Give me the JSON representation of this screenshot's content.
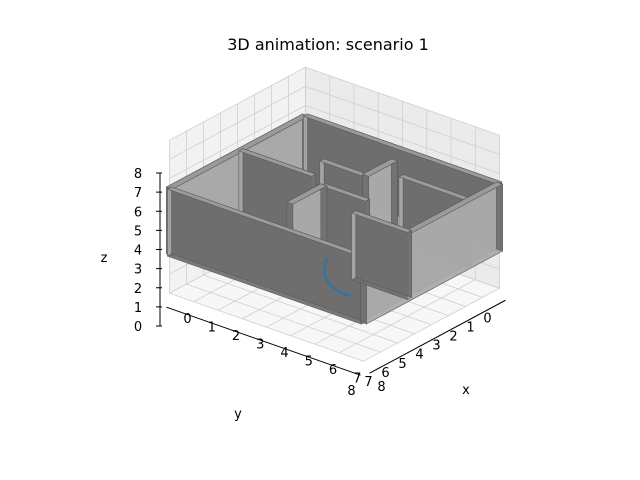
{
  "chart_data": {
    "type": "3d-wall-plot",
    "title": "3D animation: scenario 1",
    "xlabel": "x",
    "ylabel": "y",
    "zlabel": "z",
    "xlim": [
      0,
      8
    ],
    "ylim": [
      0,
      8
    ],
    "zlim": [
      0,
      8
    ],
    "x_ticks": [
      "0",
      "1",
      "2",
      "3",
      "4",
      "5",
      "6",
      "7",
      "8"
    ],
    "y_ticks": [
      "0",
      "1",
      "2",
      "3",
      "4",
      "5",
      "6",
      "7",
      "8"
    ],
    "z_ticks": [
      "0",
      "1",
      "2",
      "3",
      "4",
      "5",
      "6",
      "7",
      "8"
    ],
    "grid": true,
    "wall_height": 3.5,
    "wall_thickness": 0.25,
    "walls": [
      {
        "name": "back-wall-x0",
        "from": [
          0,
          0
        ],
        "to": [
          0,
          8
        ]
      },
      {
        "name": "left-wall-y0",
        "from": [
          0,
          0
        ],
        "to": [
          8,
          0
        ]
      },
      {
        "name": "front-wall-y8",
        "from": [
          0,
          8
        ],
        "to": [
          8,
          8
        ]
      },
      {
        "name": "right-wall-x8",
        "from": [
          8,
          0
        ],
        "to": [
          8,
          8
        ]
      },
      {
        "name": "inner-wall-a",
        "from": [
          2.5,
          0
        ],
        "to": [
          2.5,
          2.6
        ]
      },
      {
        "name": "inner-wall-b",
        "from": [
          2.5,
          2.6
        ],
        "to": [
          4.3,
          2.6
        ]
      },
      {
        "name": "inner-wall-c",
        "from": [
          4.3,
          0.9
        ],
        "to": [
          4.3,
          2.6
        ]
      },
      {
        "name": "inner-wall-d",
        "from": [
          0,
          3.8
        ],
        "to": [
          3.0,
          3.8
        ]
      },
      {
        "name": "inner-wall-e",
        "from": [
          3.7,
          4.2
        ],
        "to": [
          3.7,
          6.2
        ]
      },
      {
        "name": "inner-wall-f",
        "from": [
          3.7,
          4.2
        ],
        "to": [
          5.5,
          4.2
        ]
      },
      {
        "name": "inner-wall-g",
        "from": [
          5.7,
          5.3
        ],
        "to": [
          8,
          5.3
        ]
      },
      {
        "name": "inner-wall-h",
        "from": [
          5.2,
          1.8
        ],
        "to": [
          8,
          1.8
        ]
      }
    ],
    "series": [
      {
        "color": "#1f77b4",
        "x": [
          4.6,
          4.85,
          5.1,
          5.35,
          5.6,
          5.85,
          6.1,
          6.35,
          6.65,
          7.0
        ],
        "y": [
          5.3,
          5.75,
          6.15,
          6.5,
          6.75,
          6.95,
          7.1,
          7.2,
          7.28,
          7.3
        ],
        "z": [
          0.6,
          0.6,
          0.6,
          0.6,
          0.6,
          0.6,
          0.6,
          0.6,
          0.6,
          0.6
        ]
      }
    ]
  }
}
